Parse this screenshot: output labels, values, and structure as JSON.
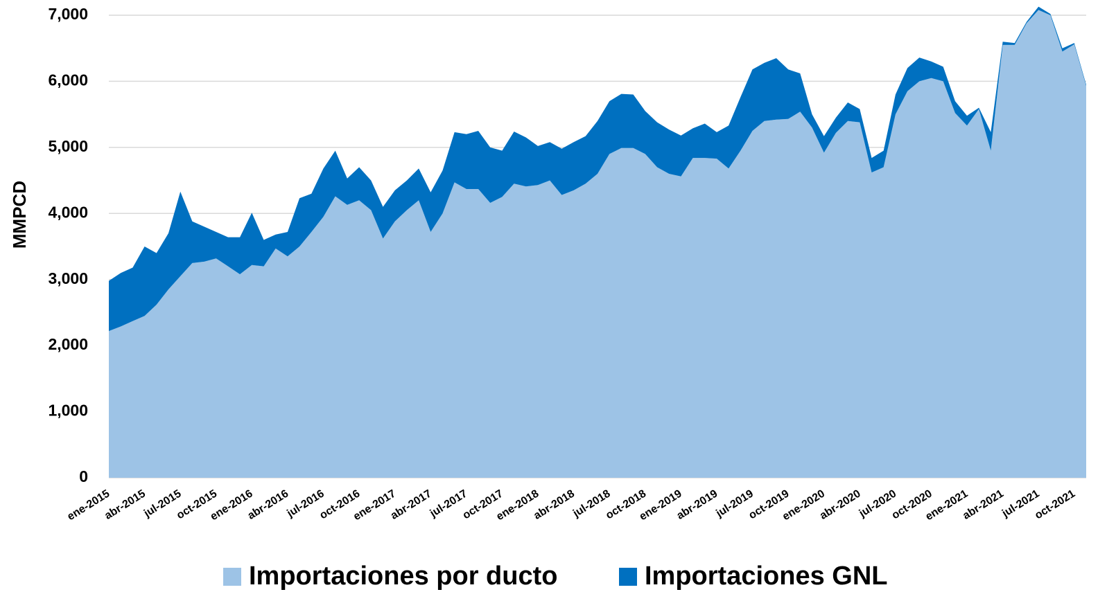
{
  "chart_data": {
    "type": "stacked_area",
    "y_label": "MMPCD",
    "categories": [
      "ene-2015",
      null,
      null,
      "abr-2015",
      null,
      null,
      "jul-2015",
      null,
      null,
      "oct-2015",
      null,
      null,
      "ene-2016",
      null,
      null,
      "abr-2016",
      null,
      null,
      "jul-2016",
      null,
      null,
      "oct-2016",
      null,
      null,
      "ene-2017",
      null,
      null,
      "abr-2017",
      null,
      null,
      "jul-2017",
      null,
      null,
      "oct-2017",
      null,
      null,
      "ene-2018",
      null,
      null,
      "abr-2018",
      null,
      null,
      "jul-2018",
      null,
      null,
      "oct-2018",
      null,
      null,
      "ene-2019",
      null,
      null,
      "abr-2019",
      null,
      null,
      "jul-2019",
      null,
      null,
      "oct-2019",
      null,
      null,
      "ene-2020",
      null,
      null,
      "abr-2020",
      null,
      null,
      "jul-2020",
      null,
      null,
      "oct-2020",
      null,
      null,
      "ene-2021",
      null,
      null,
      "abr-2021",
      null,
      null,
      "jul-2021",
      null,
      null,
      "oct-2021",
      null
    ],
    "series": [
      {
        "name": "Importaciones por ducto",
        "color": "#9dc3e6",
        "values": [
          2220,
          2290,
          2370,
          2450,
          2620,
          2850,
          3050,
          3250,
          3270,
          3320,
          3200,
          3080,
          3220,
          3200,
          3470,
          3350,
          3500,
          3720,
          3950,
          4260,
          4130,
          4200,
          4050,
          3620,
          3880,
          4050,
          4200,
          3720,
          4000,
          4470,
          4370,
          4370,
          4160,
          4250,
          4450,
          4410,
          4430,
          4500,
          4280,
          4350,
          4450,
          4600,
          4900,
          4990,
          4990,
          4900,
          4700,
          4600,
          4560,
          4840,
          4840,
          4830,
          4680,
          4950,
          5250,
          5400,
          5420,
          5430,
          5540,
          5300,
          4920,
          5220,
          5400,
          5380,
          4620,
          4700,
          5500,
          5850,
          6000,
          6050,
          6000,
          5520,
          5330,
          5580,
          4950,
          6550,
          6550,
          6880,
          7080,
          7000,
          6450,
          6560,
          5930
        ]
      },
      {
        "name": "Importaciones GNL",
        "color": "#0070c0",
        "values": [
          760,
          810,
          810,
          1050,
          780,
          850,
          1280,
          630,
          530,
          400,
          440,
          560,
          790,
          400,
          210,
          370,
          730,
          580,
          730,
          690,
          400,
          500,
          450,
          480,
          470,
          450,
          480,
          600,
          650,
          760,
          830,
          880,
          840,
          700,
          790,
          740,
          590,
          580,
          700,
          730,
          720,
          800,
          800,
          820,
          810,
          650,
          680,
          670,
          620,
          450,
          520,
          400,
          650,
          810,
          930,
          880,
          930,
          750,
          580,
          200,
          250,
          230,
          280,
          200,
          220,
          250,
          300,
          350,
          360,
          250,
          220,
          180,
          150,
          20,
          280,
          50,
          30,
          20,
          50,
          20,
          50,
          20,
          20
        ]
      }
    ],
    "ylim": [
      0,
      7000
    ],
    "yticks": [
      0,
      {
        "value": 1000,
        "label": "1,000"
      },
      {
        "value": 2000,
        "label": "2,000"
      },
      {
        "value": 3000,
        "label": "3,000"
      },
      {
        "value": 4000,
        "label": "4,000"
      },
      {
        "value": 5000,
        "label": "5,000"
      },
      {
        "value": 6000,
        "label": "6,000"
      },
      {
        "value": 7000,
        "label": "7,000"
      }
    ],
    "grid": true,
    "legend": "bottom"
  }
}
